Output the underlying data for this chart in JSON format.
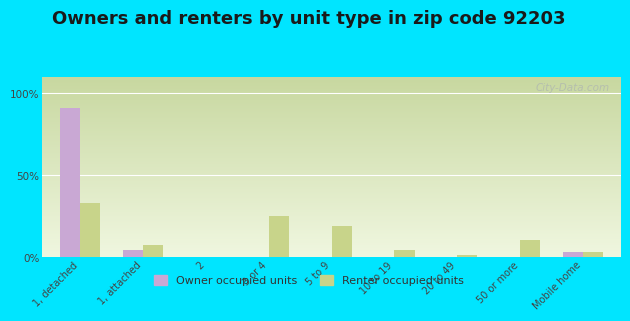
{
  "title": "Owners and renters by unit type in zip code 92203",
  "categories": [
    "1, detached",
    "1, attached",
    "2",
    "3 or 4",
    "5 to 9",
    "10 to 19",
    "20 to 49",
    "50 or more",
    "Mobile home"
  ],
  "owner_values": [
    91,
    4,
    0,
    0,
    0,
    0,
    0,
    0,
    3
  ],
  "renter_values": [
    33,
    7,
    0,
    25,
    19,
    4,
    1,
    10,
    3
  ],
  "owner_color": "#c9a8d4",
  "renter_color": "#c8d48a",
  "outer_bg": "#00e5ff",
  "yticks": [
    0,
    50,
    100
  ],
  "ylabels": [
    "0%",
    "50%",
    "100%"
  ],
  "bar_width": 0.32,
  "title_fontsize": 13,
  "legend_owner": "Owner occupied units",
  "legend_renter": "Renter occupied units",
  "watermark": "City-Data.com",
  "grad_top_color": "#c8d8a0",
  "grad_bottom_color": "#f0f7e0"
}
